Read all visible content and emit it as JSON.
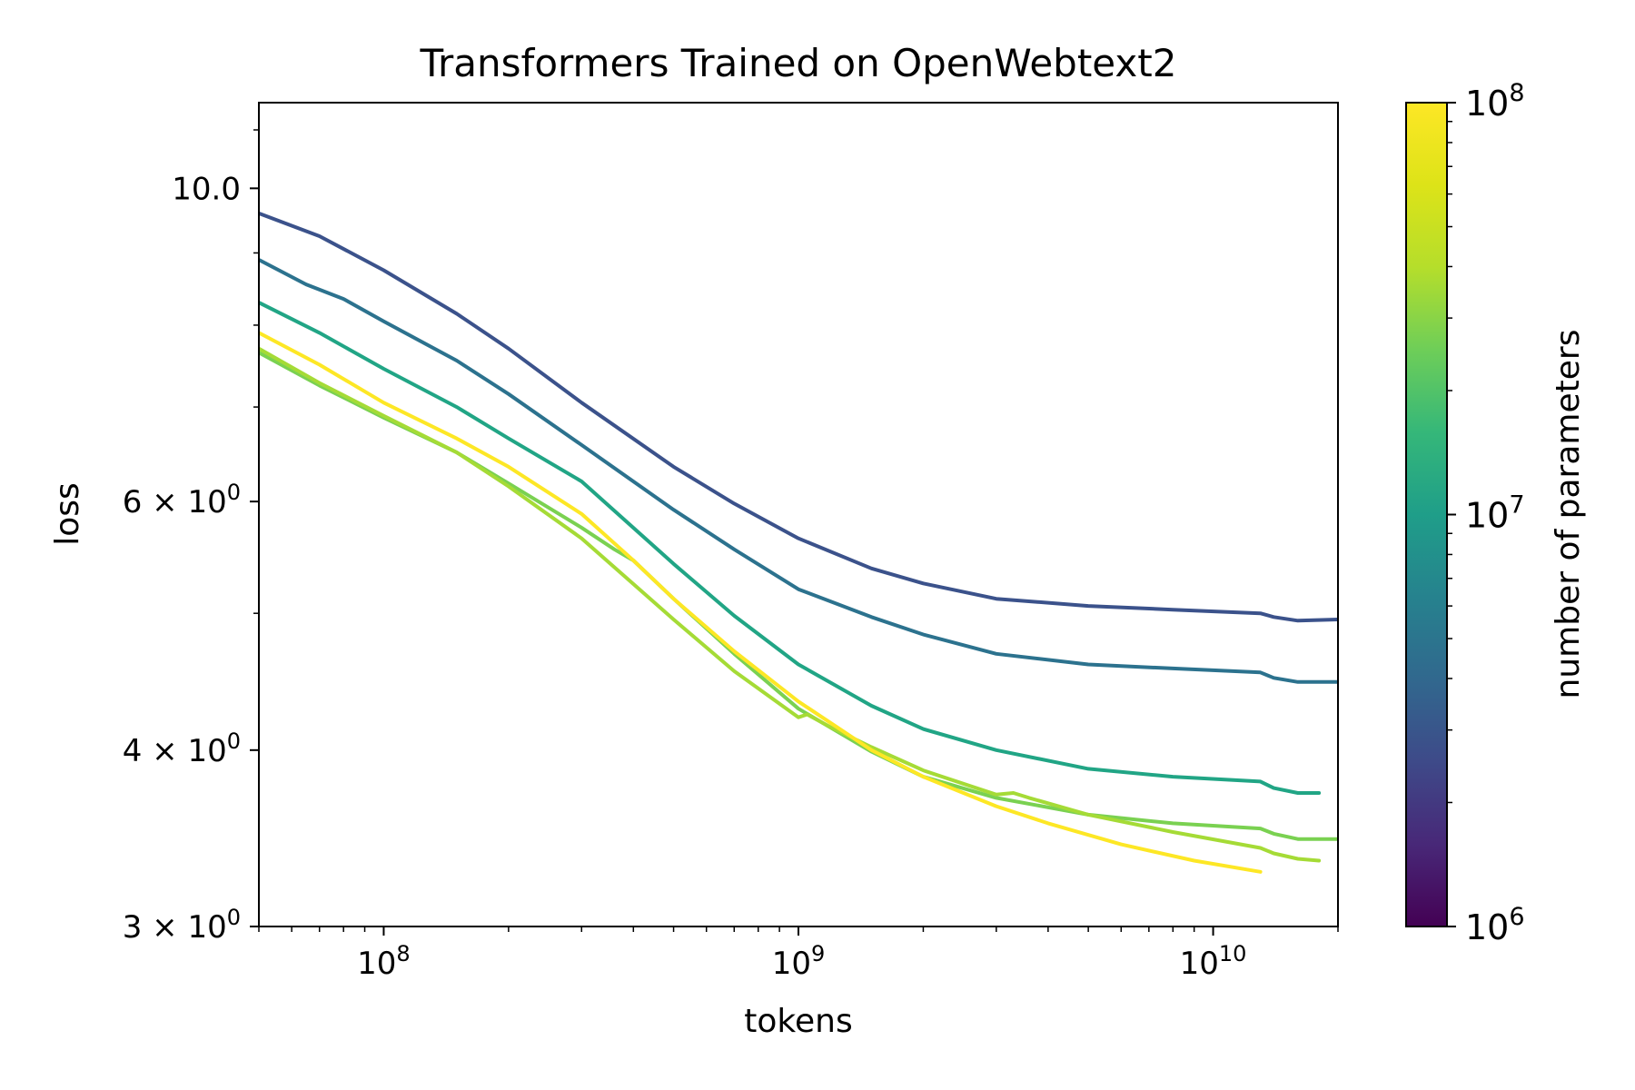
{
  "chart_data": {
    "type": "line",
    "title": "Transformers Trained on OpenWebtext2",
    "xlabel": "tokens",
    "ylabel": "loss",
    "xscale": "log",
    "yscale": "log",
    "xlim": [
      50000000,
      20000000000
    ],
    "ylim": [
      3,
      11.5
    ],
    "grid": false,
    "x_ticks": [
      {
        "value": 100000000,
        "base": "10",
        "exp": "8"
      },
      {
        "value": 1000000000,
        "base": "10",
        "exp": "9"
      },
      {
        "value": 10000000000,
        "base": "10",
        "exp": "10"
      }
    ],
    "y_ticks": [
      {
        "value": 10,
        "label": "10.0"
      },
      {
        "value": 6,
        "label": "6 × 10",
        "exp": "0"
      },
      {
        "value": 4,
        "label": "4 × 10",
        "exp": "0"
      },
      {
        "value": 3,
        "label": "3 × 10",
        "exp": "0"
      }
    ],
    "colorbar": {
      "label": "number of parameters",
      "scale": "log",
      "range": [
        1000000,
        100000000
      ],
      "colormap": "viridis",
      "ticks": [
        {
          "value": 1000000,
          "base": "10",
          "exp": "6"
        },
        {
          "value": 10000000,
          "base": "10",
          "exp": "7"
        },
        {
          "value": 100000000,
          "base": "10",
          "exp": "8"
        }
      ]
    },
    "series": [
      {
        "color": "#3b528b",
        "x": [
          50000000,
          70000000,
          100000000,
          150000000,
          200000000,
          300000000,
          500000000,
          700000000,
          1000000000,
          1500000000,
          2000000000,
          3000000000,
          5000000000,
          8000000000,
          13000000000,
          14000000000,
          16000000000,
          20000000000
        ],
        "y": [
          9.6,
          9.25,
          8.75,
          8.15,
          7.7,
          7.05,
          6.35,
          5.98,
          5.65,
          5.38,
          5.25,
          5.12,
          5.06,
          5.03,
          5.0,
          4.97,
          4.94,
          4.95
        ]
      },
      {
        "color": "#2c728e",
        "x": [
          50000000,
          65000000,
          80000000,
          100000000,
          150000000,
          200000000,
          300000000,
          500000000,
          700000000,
          1000000000,
          1500000000,
          2000000000,
          3000000000,
          5000000000,
          8000000000,
          13000000000,
          14000000000,
          16000000000,
          20000000000
        ],
        "y": [
          8.9,
          8.55,
          8.35,
          8.05,
          7.55,
          7.15,
          6.58,
          5.92,
          5.55,
          5.2,
          4.97,
          4.83,
          4.68,
          4.6,
          4.57,
          4.54,
          4.5,
          4.47,
          4.47
        ]
      },
      {
        "color": "#21a585",
        "x": [
          50000000,
          70000000,
          100000000,
          150000000,
          200000000,
          300000000,
          500000000,
          700000000,
          1000000000,
          1500000000,
          2000000000,
          3000000000,
          5000000000,
          8000000000,
          13000000000,
          14000000000,
          16000000000,
          18000000000
        ],
        "y": [
          8.3,
          7.9,
          7.45,
          7.0,
          6.65,
          6.2,
          5.42,
          4.98,
          4.6,
          4.3,
          4.14,
          4.0,
          3.88,
          3.83,
          3.8,
          3.76,
          3.73,
          3.73
        ]
      },
      {
        "color": "#7ad151",
        "x": [
          50000000,
          70000000,
          100000000,
          150000000,
          200000000,
          300000000,
          360000000,
          400000000,
          500000000,
          700000000,
          1000000000,
          1500000000,
          2000000000,
          3000000000,
          5000000000,
          8000000000,
          13000000000,
          14000000000,
          16000000000,
          20000000000
        ],
        "y": [
          7.65,
          7.25,
          6.88,
          6.5,
          6.18,
          5.75,
          5.55,
          5.45,
          5.12,
          4.68,
          4.28,
          3.99,
          3.83,
          3.7,
          3.6,
          3.55,
          3.52,
          3.49,
          3.46,
          3.46
        ]
      },
      {
        "color": "#a5db36",
        "x": [
          50000000,
          70000000,
          100000000,
          150000000,
          200000000,
          300000000,
          500000000,
          700000000,
          1000000000,
          1050000000,
          1200000000,
          1500000000,
          2000000000,
          3000000000,
          3300000000,
          3600000000,
          5000000000,
          8000000000,
          13000000000,
          14000000000,
          16000000000,
          18000000000
        ],
        "y": [
          7.7,
          7.28,
          6.9,
          6.5,
          6.15,
          5.65,
          4.95,
          4.55,
          4.22,
          4.24,
          4.15,
          4.02,
          3.87,
          3.72,
          3.73,
          3.7,
          3.6,
          3.5,
          3.41,
          3.38,
          3.35,
          3.34
        ]
      },
      {
        "color": "#fde725",
        "x": [
          50000000,
          70000000,
          100000000,
          150000000,
          200000000,
          300000000,
          400000000,
          500000000,
          700000000,
          1000000000,
          1500000000,
          2000000000,
          3000000000,
          4000000000,
          6000000000,
          9000000000,
          13000000000
        ],
        "y": [
          7.9,
          7.5,
          7.05,
          6.65,
          6.35,
          5.88,
          5.45,
          5.12,
          4.7,
          4.33,
          4.0,
          3.83,
          3.65,
          3.55,
          3.43,
          3.34,
          3.28
        ]
      }
    ]
  }
}
